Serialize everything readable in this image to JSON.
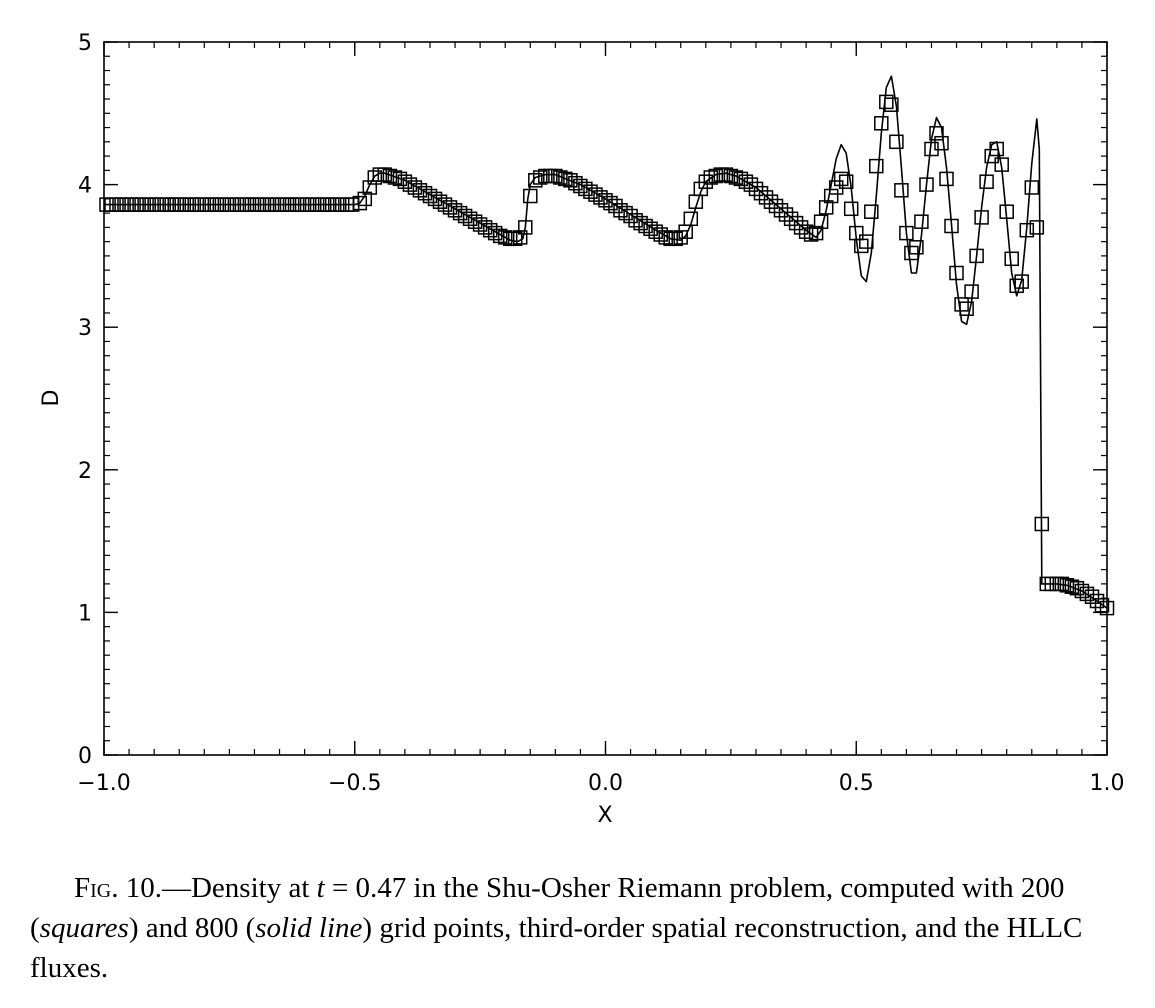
{
  "chart_data": {
    "type": "line",
    "xlabel": "X",
    "ylabel": "D",
    "xlim": [
      -1.0,
      1.0
    ],
    "ylim": [
      0,
      5
    ],
    "x_ticks": [
      "−1.0",
      "−0.5",
      "0.0",
      "0.5",
      "1.0"
    ],
    "y_ticks": [
      "0",
      "1",
      "2",
      "3",
      "4",
      "5"
    ],
    "series": [
      {
        "marker": "square",
        "points": [
          [
            -0.995,
            3.86
          ],
          [
            -0.985,
            3.86
          ],
          [
            -0.975,
            3.86
          ],
          [
            -0.965,
            3.86
          ],
          [
            -0.955,
            3.86
          ],
          [
            -0.945,
            3.86
          ],
          [
            -0.935,
            3.86
          ],
          [
            -0.925,
            3.86
          ],
          [
            -0.915,
            3.86
          ],
          [
            -0.905,
            3.86
          ],
          [
            -0.895,
            3.86
          ],
          [
            -0.885,
            3.86
          ],
          [
            -0.875,
            3.86
          ],
          [
            -0.865,
            3.86
          ],
          [
            -0.855,
            3.86
          ],
          [
            -0.845,
            3.86
          ],
          [
            -0.835,
            3.86
          ],
          [
            -0.825,
            3.86
          ],
          [
            -0.815,
            3.86
          ],
          [
            -0.805,
            3.86
          ],
          [
            -0.795,
            3.86
          ],
          [
            -0.785,
            3.86
          ],
          [
            -0.775,
            3.86
          ],
          [
            -0.765,
            3.86
          ],
          [
            -0.755,
            3.86
          ],
          [
            -0.745,
            3.86
          ],
          [
            -0.735,
            3.86
          ],
          [
            -0.725,
            3.86
          ],
          [
            -0.715,
            3.86
          ],
          [
            -0.705,
            3.86
          ],
          [
            -0.695,
            3.86
          ],
          [
            -0.685,
            3.86
          ],
          [
            -0.675,
            3.86
          ],
          [
            -0.665,
            3.86
          ],
          [
            -0.655,
            3.86
          ],
          [
            -0.645,
            3.86
          ],
          [
            -0.635,
            3.86
          ],
          [
            -0.625,
            3.86
          ],
          [
            -0.615,
            3.86
          ],
          [
            -0.605,
            3.86
          ],
          [
            -0.595,
            3.86
          ],
          [
            -0.585,
            3.86
          ],
          [
            -0.575,
            3.86
          ],
          [
            -0.565,
            3.86
          ],
          [
            -0.555,
            3.86
          ],
          [
            -0.545,
            3.86
          ],
          [
            -0.535,
            3.86
          ],
          [
            -0.525,
            3.86
          ],
          [
            -0.515,
            3.86
          ],
          [
            -0.505,
            3.86
          ],
          [
            -0.49,
            3.87
          ],
          [
            -0.48,
            3.9
          ],
          [
            -0.47,
            3.98
          ],
          [
            -0.46,
            4.05
          ],
          [
            -0.45,
            4.07
          ],
          [
            -0.44,
            4.07
          ],
          [
            -0.43,
            4.06
          ],
          [
            -0.42,
            4.05
          ],
          [
            -0.41,
            4.04
          ],
          [
            -0.4,
            4.02
          ],
          [
            -0.39,
            4.0
          ],
          [
            -0.38,
            3.98
          ],
          [
            -0.37,
            3.96
          ],
          [
            -0.36,
            3.94
          ],
          [
            -0.35,
            3.92
          ],
          [
            -0.34,
            3.9
          ],
          [
            -0.33,
            3.88
          ],
          [
            -0.32,
            3.86
          ],
          [
            -0.31,
            3.84
          ],
          [
            -0.3,
            3.82
          ],
          [
            -0.29,
            3.8
          ],
          [
            -0.28,
            3.78
          ],
          [
            -0.27,
            3.76
          ],
          [
            -0.26,
            3.74
          ],
          [
            -0.25,
            3.72
          ],
          [
            -0.24,
            3.7
          ],
          [
            -0.23,
            3.68
          ],
          [
            -0.22,
            3.66
          ],
          [
            -0.21,
            3.64
          ],
          [
            -0.2,
            3.63
          ],
          [
            -0.19,
            3.62
          ],
          [
            -0.18,
            3.62
          ],
          [
            -0.17,
            3.63
          ],
          [
            -0.16,
            3.7
          ],
          [
            -0.15,
            3.92
          ],
          [
            -0.14,
            4.03
          ],
          [
            -0.13,
            4.05
          ],
          [
            -0.12,
            4.06
          ],
          [
            -0.11,
            4.06
          ],
          [
            -0.1,
            4.06
          ],
          [
            -0.09,
            4.05
          ],
          [
            -0.08,
            4.04
          ],
          [
            -0.07,
            4.03
          ],
          [
            -0.06,
            4.01
          ],
          [
            -0.05,
            3.99
          ],
          [
            -0.04,
            3.97
          ],
          [
            -0.03,
            3.95
          ],
          [
            -0.02,
            3.93
          ],
          [
            -0.01,
            3.91
          ],
          [
            0.0,
            3.89
          ],
          [
            0.01,
            3.87
          ],
          [
            0.02,
            3.85
          ],
          [
            0.03,
            3.82
          ],
          [
            0.04,
            3.8
          ],
          [
            0.05,
            3.78
          ],
          [
            0.06,
            3.75
          ],
          [
            0.07,
            3.73
          ],
          [
            0.08,
            3.71
          ],
          [
            0.09,
            3.69
          ],
          [
            0.1,
            3.67
          ],
          [
            0.11,
            3.65
          ],
          [
            0.12,
            3.63
          ],
          [
            0.13,
            3.62
          ],
          [
            0.14,
            3.62
          ],
          [
            0.15,
            3.63
          ],
          [
            0.16,
            3.67
          ],
          [
            0.17,
            3.76
          ],
          [
            0.18,
            3.88
          ],
          [
            0.19,
            3.97
          ],
          [
            0.2,
            4.02
          ],
          [
            0.21,
            4.05
          ],
          [
            0.22,
            4.06
          ],
          [
            0.23,
            4.07
          ],
          [
            0.24,
            4.07
          ],
          [
            0.25,
            4.06
          ],
          [
            0.26,
            4.05
          ],
          [
            0.27,
            4.04
          ],
          [
            0.28,
            4.02
          ],
          [
            0.29,
            4.0
          ],
          [
            0.3,
            3.97
          ],
          [
            0.31,
            3.94
          ],
          [
            0.32,
            3.91
          ],
          [
            0.33,
            3.88
          ],
          [
            0.34,
            3.85
          ],
          [
            0.35,
            3.82
          ],
          [
            0.36,
            3.79
          ],
          [
            0.37,
            3.76
          ],
          [
            0.38,
            3.73
          ],
          [
            0.39,
            3.7
          ],
          [
            0.4,
            3.67
          ],
          [
            0.41,
            3.65
          ],
          [
            0.42,
            3.66
          ],
          [
            0.43,
            3.74
          ],
          [
            0.44,
            3.84
          ],
          [
            0.45,
            3.92
          ],
          [
            0.46,
            3.98
          ],
          [
            0.47,
            4.04
          ],
          [
            0.48,
            4.02
          ],
          [
            0.49,
            3.83
          ],
          [
            0.5,
            3.66
          ],
          [
            0.51,
            3.57
          ],
          [
            0.52,
            3.6
          ],
          [
            0.53,
            3.81
          ],
          [
            0.54,
            4.13
          ],
          [
            0.55,
            4.43
          ],
          [
            0.56,
            4.58
          ],
          [
            0.57,
            4.56
          ],
          [
            0.58,
            4.3
          ],
          [
            0.59,
            3.96
          ],
          [
            0.6,
            3.66
          ],
          [
            0.61,
            3.52
          ],
          [
            0.62,
            3.56
          ],
          [
            0.63,
            3.74
          ],
          [
            0.64,
            4.0
          ],
          [
            0.65,
            4.25
          ],
          [
            0.66,
            4.36
          ],
          [
            0.67,
            4.29
          ],
          [
            0.68,
            4.04
          ],
          [
            0.69,
            3.71
          ],
          [
            0.7,
            3.38
          ],
          [
            0.71,
            3.16
          ],
          [
            0.72,
            3.13
          ],
          [
            0.73,
            3.25
          ],
          [
            0.74,
            3.5
          ],
          [
            0.75,
            3.77
          ],
          [
            0.76,
            4.02
          ],
          [
            0.77,
            4.2
          ],
          [
            0.78,
            4.25
          ],
          [
            0.79,
            4.14
          ],
          [
            0.8,
            3.81
          ],
          [
            0.81,
            3.48
          ],
          [
            0.82,
            3.29
          ],
          [
            0.83,
            3.32
          ],
          [
            0.84,
            3.68
          ],
          [
            0.85,
            3.98
          ],
          [
            0.86,
            3.7
          ],
          [
            0.87,
            1.62
          ],
          [
            0.88,
            1.2
          ],
          [
            0.89,
            1.2
          ],
          [
            0.9,
            1.2
          ],
          [
            0.91,
            1.2
          ],
          [
            0.92,
            1.19
          ],
          [
            0.93,
            1.18
          ],
          [
            0.94,
            1.17
          ],
          [
            0.95,
            1.15
          ],
          [
            0.96,
            1.13
          ],
          [
            0.97,
            1.11
          ],
          [
            0.98,
            1.08
          ],
          [
            0.99,
            1.05
          ],
          [
            1.0,
            1.03
          ]
        ]
      },
      {
        "style": "solid",
        "points": [
          [
            -1.0,
            3.86
          ],
          [
            -0.5,
            3.86
          ],
          [
            -0.49,
            3.87
          ],
          [
            -0.48,
            3.92
          ],
          [
            -0.47,
            4.0
          ],
          [
            -0.46,
            4.06
          ],
          [
            -0.45,
            4.08
          ],
          [
            -0.44,
            4.08
          ],
          [
            -0.4,
            4.03
          ],
          [
            -0.35,
            3.93
          ],
          [
            -0.3,
            3.83
          ],
          [
            -0.25,
            3.73
          ],
          [
            -0.21,
            3.65
          ],
          [
            -0.19,
            3.61
          ],
          [
            -0.175,
            3.6
          ],
          [
            -0.165,
            3.62
          ],
          [
            -0.16,
            3.7
          ],
          [
            -0.155,
            3.9
          ],
          [
            -0.15,
            4.0
          ],
          [
            -0.14,
            4.05
          ],
          [
            -0.12,
            4.07
          ],
          [
            -0.1,
            4.07
          ],
          [
            -0.05,
            4.0
          ],
          [
            0.0,
            3.9
          ],
          [
            0.05,
            3.79
          ],
          [
            0.1,
            3.68
          ],
          [
            0.13,
            3.62
          ],
          [
            0.15,
            3.61
          ],
          [
            0.16,
            3.64
          ],
          [
            0.17,
            3.72
          ],
          [
            0.18,
            3.84
          ],
          [
            0.19,
            3.95
          ],
          [
            0.2,
            4.02
          ],
          [
            0.22,
            4.07
          ],
          [
            0.24,
            4.08
          ],
          [
            0.26,
            4.06
          ],
          [
            0.3,
            3.98
          ],
          [
            0.35,
            3.83
          ],
          [
            0.4,
            3.68
          ],
          [
            0.42,
            3.63
          ],
          [
            0.43,
            3.68
          ],
          [
            0.44,
            3.82
          ],
          [
            0.45,
            4.0
          ],
          [
            0.46,
            4.18
          ],
          [
            0.47,
            4.28
          ],
          [
            0.48,
            4.22
          ],
          [
            0.49,
            3.98
          ],
          [
            0.5,
            3.62
          ],
          [
            0.51,
            3.36
          ],
          [
            0.52,
            3.32
          ],
          [
            0.53,
            3.52
          ],
          [
            0.54,
            3.92
          ],
          [
            0.55,
            4.36
          ],
          [
            0.56,
            4.68
          ],
          [
            0.57,
            4.76
          ],
          [
            0.58,
            4.55
          ],
          [
            0.59,
            4.12
          ],
          [
            0.6,
            3.66
          ],
          [
            0.61,
            3.38
          ],
          [
            0.62,
            3.38
          ],
          [
            0.63,
            3.64
          ],
          [
            0.64,
            4.0
          ],
          [
            0.65,
            4.32
          ],
          [
            0.66,
            4.47
          ],
          [
            0.67,
            4.4
          ],
          [
            0.68,
            4.12
          ],
          [
            0.69,
            3.72
          ],
          [
            0.7,
            3.3
          ],
          [
            0.71,
            3.04
          ],
          [
            0.72,
            3.02
          ],
          [
            0.73,
            3.18
          ],
          [
            0.74,
            3.5
          ],
          [
            0.75,
            3.84
          ],
          [
            0.76,
            4.12
          ],
          [
            0.77,
            4.28
          ],
          [
            0.78,
            4.3
          ],
          [
            0.79,
            4.12
          ],
          [
            0.8,
            3.76
          ],
          [
            0.81,
            3.38
          ],
          [
            0.82,
            3.22
          ],
          [
            0.83,
            3.33
          ],
          [
            0.84,
            3.7
          ],
          [
            0.85,
            4.15
          ],
          [
            0.86,
            4.46
          ],
          [
            0.865,
            4.25
          ],
          [
            0.87,
            1.2
          ],
          [
            0.88,
            1.2
          ],
          [
            0.9,
            1.2
          ],
          [
            0.92,
            1.19
          ],
          [
            0.95,
            1.15
          ],
          [
            0.98,
            1.08
          ],
          [
            1.0,
            1.03
          ]
        ]
      }
    ]
  },
  "caption": {
    "fig_label": "Fig. 10.",
    "dash": "—",
    "text_a": "Density at ",
    "t_var": "t",
    "text_b": " = 0.47 in the Shu-Osher Riemann problem, computed with 200 (",
    "squares": "squares",
    "text_c": ") and 800 (",
    "solid_line": "solid line",
    "text_d": ") grid points, third-order spatial reconstruction, and the HLLC fluxes."
  }
}
